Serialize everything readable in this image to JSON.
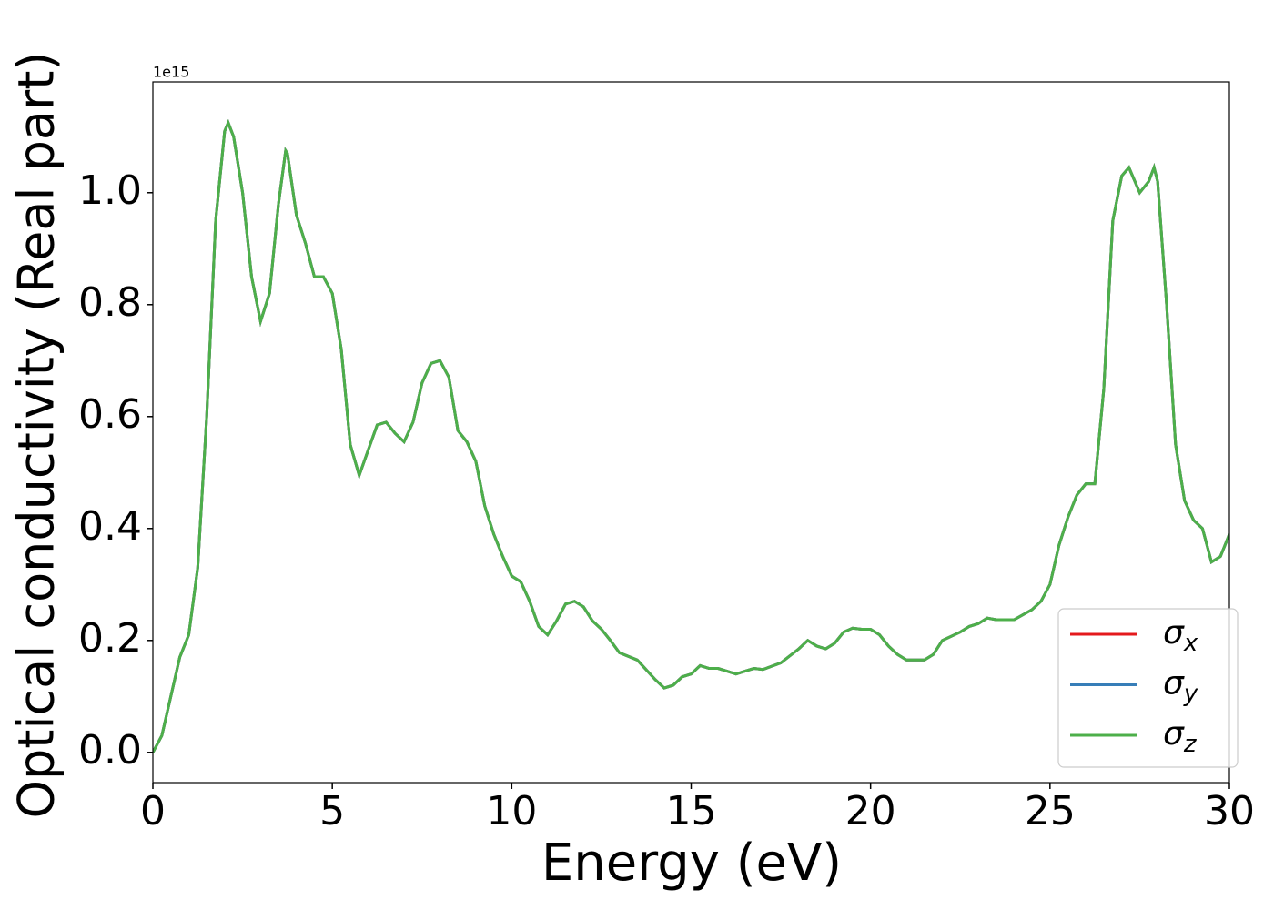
{
  "chart_data": {
    "type": "line",
    "x_label": "Energy (eV)",
    "y_label": "Optical conductivity (Real part)",
    "y_offset_label": "1e15",
    "xlim": [
      0,
      30
    ],
    "ylim": [
      -0.054,
      1.198
    ],
    "xticks": [
      0,
      5,
      10,
      15,
      20,
      25,
      30
    ],
    "yticks": [
      {
        "value": 0,
        "label": "0.0"
      },
      0.2,
      0.4,
      0.6,
      0.8,
      {
        "value": 1,
        "label": "1.0"
      }
    ],
    "legend": "lower right",
    "x": [
      0,
      0.25,
      0.5,
      0.75,
      1,
      1.25,
      1.5,
      1.75,
      2,
      2.1,
      2.25,
      2.5,
      2.75,
      3,
      3.25,
      3.5,
      3.7,
      3.75,
      4,
      4.25,
      4.5,
      4.75,
      5,
      5.25,
      5.5,
      5.75,
      6,
      6.25,
      6.5,
      6.75,
      7,
      7.25,
      7.5,
      7.75,
      8,
      8.25,
      8.5,
      8.75,
      9,
      9.25,
      9.5,
      9.75,
      10,
      10.25,
      10.5,
      10.75,
      11,
      11.25,
      11.5,
      11.75,
      12,
      12.25,
      12.5,
      12.75,
      13,
      13.5,
      14,
      14.25,
      14.5,
      14.75,
      15,
      15.25,
      15.5,
      15.75,
      16,
      16.25,
      16.5,
      16.75,
      17,
      17.5,
      18,
      18.25,
      18.5,
      18.75,
      19,
      19.25,
      19.5,
      19.75,
      20,
      20.25,
      20.5,
      20.75,
      21,
      21.5,
      21.75,
      22,
      22.5,
      22.75,
      23,
      23.25,
      23.5,
      24,
      24.5,
      24.75,
      25,
      25.25,
      25.5,
      25.75,
      26,
      26.25,
      26.5,
      26.75,
      27,
      27.2,
      27.5,
      27.75,
      27.9,
      28,
      28.25,
      28.5,
      28.75,
      29,
      29.25,
      29.5,
      29.75,
      30
    ],
    "series": [
      {
        "name": "σx",
        "color": "#e41a1c",
        "values": [
          0,
          0.03,
          0.1,
          0.17,
          0.21,
          0.33,
          0.6,
          0.95,
          1.11,
          1.125,
          1.1,
          1,
          0.85,
          0.77,
          0.82,
          0.98,
          1.075,
          1.07,
          0.96,
          0.91,
          0.85,
          0.85,
          0.82,
          0.72,
          0.55,
          0.495,
          0.54,
          0.585,
          0.59,
          0.57,
          0.555,
          0.59,
          0.66,
          0.695,
          0.7,
          0.67,
          0.575,
          0.555,
          0.52,
          0.44,
          0.39,
          0.35,
          0.315,
          0.305,
          0.27,
          0.225,
          0.21,
          0.235,
          0.265,
          0.27,
          0.26,
          0.235,
          0.22,
          0.2,
          0.178,
          0.165,
          0.13,
          0.115,
          0.12,
          0.135,
          0.14,
          0.155,
          0.15,
          0.15,
          0.145,
          0.14,
          0.145,
          0.15,
          0.148,
          0.16,
          0.185,
          0.2,
          0.19,
          0.185,
          0.195,
          0.215,
          0.222,
          0.22,
          0.22,
          0.21,
          0.19,
          0.175,
          0.165,
          0.165,
          0.175,
          0.2,
          0.215,
          0.225,
          0.23,
          0.24,
          0.237,
          0.237,
          0.255,
          0.27,
          0.3,
          0.37,
          0.42,
          0.46,
          0.48,
          0.48,
          0.65,
          0.95,
          1.03,
          1.045,
          1,
          1.02,
          1.045,
          1.02,
          0.8,
          0.55,
          0.45,
          0.415,
          0.4,
          0.34,
          0.35,
          0.39
        ]
      },
      {
        "name": "σy",
        "color": "#377eb8",
        "values": [
          0,
          0.03,
          0.1,
          0.17,
          0.21,
          0.33,
          0.6,
          0.95,
          1.11,
          1.125,
          1.1,
          1,
          0.85,
          0.77,
          0.82,
          0.98,
          1.075,
          1.07,
          0.96,
          0.91,
          0.85,
          0.85,
          0.82,
          0.72,
          0.55,
          0.495,
          0.54,
          0.585,
          0.59,
          0.57,
          0.555,
          0.59,
          0.66,
          0.695,
          0.7,
          0.67,
          0.575,
          0.555,
          0.52,
          0.44,
          0.39,
          0.35,
          0.315,
          0.305,
          0.27,
          0.225,
          0.21,
          0.235,
          0.265,
          0.27,
          0.26,
          0.235,
          0.22,
          0.2,
          0.178,
          0.165,
          0.13,
          0.115,
          0.12,
          0.135,
          0.14,
          0.155,
          0.15,
          0.15,
          0.145,
          0.14,
          0.145,
          0.15,
          0.148,
          0.16,
          0.185,
          0.2,
          0.19,
          0.185,
          0.195,
          0.215,
          0.222,
          0.22,
          0.22,
          0.21,
          0.19,
          0.175,
          0.165,
          0.165,
          0.175,
          0.2,
          0.215,
          0.225,
          0.23,
          0.24,
          0.237,
          0.237,
          0.255,
          0.27,
          0.3,
          0.37,
          0.42,
          0.46,
          0.48,
          0.48,
          0.65,
          0.95,
          1.03,
          1.045,
          1,
          1.02,
          1.045,
          1.02,
          0.8,
          0.55,
          0.45,
          0.415,
          0.4,
          0.34,
          0.35,
          0.39
        ]
      },
      {
        "name": "σz",
        "color": "#4daf4a",
        "values": [
          0,
          0.03,
          0.1,
          0.17,
          0.21,
          0.33,
          0.6,
          0.95,
          1.11,
          1.125,
          1.1,
          1,
          0.85,
          0.77,
          0.82,
          0.98,
          1.075,
          1.07,
          0.96,
          0.91,
          0.85,
          0.85,
          0.82,
          0.72,
          0.55,
          0.495,
          0.54,
          0.585,
          0.59,
          0.57,
          0.555,
          0.59,
          0.66,
          0.695,
          0.7,
          0.67,
          0.575,
          0.555,
          0.52,
          0.44,
          0.39,
          0.35,
          0.315,
          0.305,
          0.27,
          0.225,
          0.21,
          0.235,
          0.265,
          0.27,
          0.26,
          0.235,
          0.22,
          0.2,
          0.178,
          0.165,
          0.13,
          0.115,
          0.12,
          0.135,
          0.14,
          0.155,
          0.15,
          0.15,
          0.145,
          0.14,
          0.145,
          0.15,
          0.148,
          0.16,
          0.185,
          0.2,
          0.19,
          0.185,
          0.195,
          0.215,
          0.222,
          0.22,
          0.22,
          0.21,
          0.19,
          0.175,
          0.165,
          0.165,
          0.175,
          0.2,
          0.215,
          0.225,
          0.23,
          0.24,
          0.237,
          0.237,
          0.255,
          0.27,
          0.3,
          0.37,
          0.42,
          0.46,
          0.48,
          0.48,
          0.65,
          0.95,
          1.03,
          1.045,
          1,
          1.02,
          1.045,
          1.02,
          0.8,
          0.55,
          0.45,
          0.415,
          0.4,
          0.34,
          0.35,
          0.39
        ]
      }
    ]
  }
}
